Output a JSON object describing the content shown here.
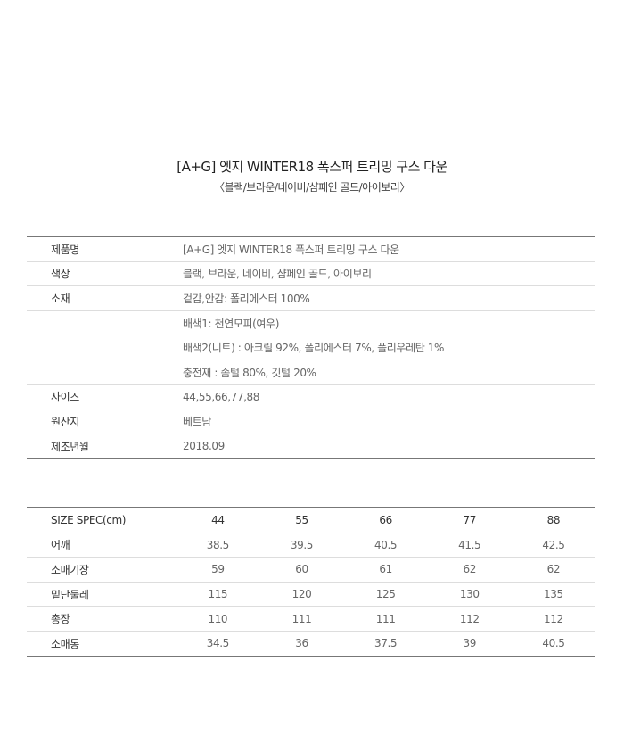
{
  "title": "[A+G] 엣지 WINTER18 폭스퍼 트리밍 구스 다운",
  "subtitle": "〈블랙/브라운/네이비/샴페인 골드/아이보리〉",
  "info": [
    {
      "label": "제품명",
      "value": "[A+G] 엣지 WINTER18 폭스퍼 트리밍 구스 다운"
    },
    {
      "label": "색상",
      "value": "블랙, 브라운, 네이비, 샴페인 골드, 아이보리"
    },
    {
      "label": "소재",
      "value": "겉감,안감: 폴리에스터 100%"
    },
    {
      "label": "",
      "value": "배색1: 천연모피(여우)"
    },
    {
      "label": "",
      "value": "배색2(니트) : 아크릴 92%, 폴리에스터 7%, 폴리우레탄 1%"
    },
    {
      "label": "",
      "value": "충전재 : 솜털 80%, 깃털 20%"
    },
    {
      "label": "사이즈",
      "value": "44,55,66,77,88"
    },
    {
      "label": "원산지",
      "value": "베트남"
    },
    {
      "label": "제조년월",
      "value": "2018.09"
    }
  ],
  "spec": {
    "header": [
      "SIZE SPEC(cm)",
      "44",
      "55",
      "66",
      "77",
      "88"
    ],
    "rows": [
      [
        "어깨",
        "38.5",
        "39.5",
        "40.5",
        "41.5",
        "42.5"
      ],
      [
        "소매기장",
        "59",
        "60",
        "61",
        "62",
        "62"
      ],
      [
        "밑단둘레",
        "115",
        "120",
        "125",
        "130",
        "135"
      ],
      [
        "총장",
        "110",
        "111",
        "111",
        "112",
        "112"
      ],
      [
        "소매통",
        "34.5",
        "36",
        "37.5",
        "39",
        "40.5"
      ]
    ]
  }
}
